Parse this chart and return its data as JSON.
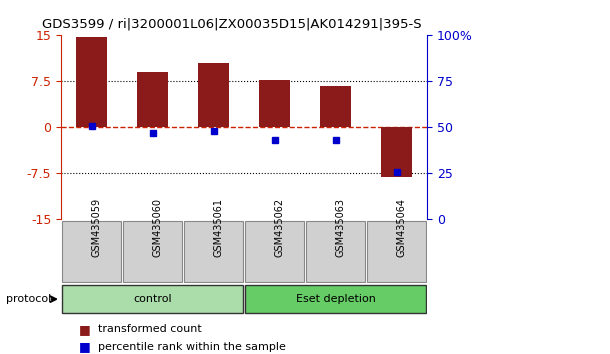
{
  "title": "GDS3599 / ri|3200001L06|ZX00035D15|AK014291|395-S",
  "samples": [
    "GSM435059",
    "GSM435060",
    "GSM435061",
    "GSM435062",
    "GSM435063",
    "GSM435064"
  ],
  "red_values": [
    14.8,
    9.0,
    10.5,
    7.8,
    6.8,
    -8.0
  ],
  "blue_values": [
    51,
    47,
    48,
    43,
    43,
    26
  ],
  "groups": [
    {
      "label": "control",
      "samples": [
        0,
        1,
        2
      ],
      "color": "#aaddaa"
    },
    {
      "label": "Eset depletion",
      "samples": [
        3,
        4,
        5
      ],
      "color": "#66cc66"
    }
  ],
  "ylim_left": [
    -15,
    15
  ],
  "yticks_left": [
    -15,
    -7.5,
    0,
    7.5,
    15
  ],
  "ytick_labels_left": [
    "-15",
    "-7.5",
    "0",
    "7.5",
    "15"
  ],
  "ylim_right": [
    0,
    100
  ],
  "yticks_right": [
    0,
    25,
    50,
    75,
    100
  ],
  "ytick_labels_right": [
    "0",
    "25",
    "50",
    "75",
    "100%"
  ],
  "hlines": [
    -7.5,
    0,
    7.5
  ],
  "bar_color": "#8b1a1a",
  "dot_color": "#0000cc",
  "bg_color": "#ffffff",
  "axis_left_color": "#cc2200",
  "axis_right_color": "#0000cc",
  "sample_bg_color": "#d0d0d0",
  "sample_border_color": "#888888",
  "legend_red_label": "transformed count",
  "legend_blue_label": "percentile rank within the sample",
  "protocol_label": "protocol",
  "bar_width": 0.5
}
